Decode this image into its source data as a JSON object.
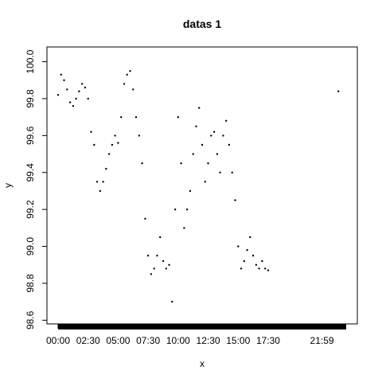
{
  "chart_data": {
    "type": "scatter",
    "title": "datas 1",
    "xlabel": "x",
    "ylabel": "y",
    "x_unit": "hours",
    "x_ticks": [
      {
        "value": 0.0,
        "label": "00:00"
      },
      {
        "value": 2.5,
        "label": "02:30"
      },
      {
        "value": 5.0,
        "label": "05:00"
      },
      {
        "value": 7.5,
        "label": "07:30"
      },
      {
        "value": 10.0,
        "label": "10:00"
      },
      {
        "value": 12.5,
        "label": "12:30"
      },
      {
        "value": 15.0,
        "label": "15:00"
      },
      {
        "value": 17.5,
        "label": "17:30"
      },
      {
        "value": 21.98,
        "label": "21:59"
      }
    ],
    "y_ticks": [
      {
        "value": 98.6,
        "label": "98.6"
      },
      {
        "value": 98.8,
        "label": "98.8"
      },
      {
        "value": 99.0,
        "label": "99.0"
      },
      {
        "value": 99.2,
        "label": "99.2"
      },
      {
        "value": 99.4,
        "label": "99.4"
      },
      {
        "value": 99.6,
        "label": "99.6"
      },
      {
        "value": 99.8,
        "label": "99.8"
      },
      {
        "value": 100.0,
        "label": "100.0"
      }
    ],
    "xlim": [
      0,
      24
    ],
    "ylim": [
      98.58,
      100.08
    ],
    "rug": {
      "from": 0.0,
      "to": 24.0,
      "note": "dense tick marks along the x-axis"
    },
    "series": [
      {
        "marker": "point",
        "color": "#000000",
        "x": [
          0.0,
          0.25,
          0.5,
          0.75,
          1.0,
          1.25,
          1.5,
          1.75,
          2.0,
          2.25,
          2.5,
          2.75,
          3.0,
          3.25,
          3.5,
          3.75,
          4.0,
          4.25,
          4.5,
          4.75,
          5.0,
          5.25,
          5.5,
          5.75,
          6.0,
          6.25,
          6.5,
          6.75,
          7.0,
          7.25,
          7.5,
          7.75,
          8.0,
          8.25,
          8.5,
          8.75,
          9.0,
          9.25,
          9.5,
          9.75,
          10.0,
          10.25,
          10.5,
          10.75,
          11.0,
          11.25,
          11.5,
          11.75,
          12.0,
          12.25,
          12.5,
          12.75,
          13.0,
          13.25,
          13.5,
          13.75,
          14.0,
          14.25,
          14.5,
          14.75,
          15.0,
          15.25,
          15.5,
          15.75,
          16.0,
          16.25,
          16.5,
          16.75,
          17.0,
          17.25,
          17.5,
          23.35
        ],
        "y": [
          99.82,
          99.93,
          99.9,
          99.85,
          99.78,
          99.76,
          99.8,
          99.84,
          99.88,
          99.86,
          99.8,
          99.62,
          99.55,
          99.35,
          99.3,
          99.35,
          99.42,
          99.5,
          99.55,
          99.6,
          99.56,
          99.7,
          99.88,
          99.93,
          99.95,
          99.85,
          99.7,
          99.6,
          99.45,
          99.15,
          98.95,
          98.85,
          98.88,
          98.95,
          99.05,
          98.92,
          98.88,
          98.9,
          98.7,
          99.2,
          99.7,
          99.45,
          99.1,
          99.2,
          99.3,
          99.5,
          99.65,
          99.75,
          99.55,
          99.35,
          99.45,
          99.6,
          99.62,
          99.5,
          99.4,
          99.6,
          99.68,
          99.55,
          99.4,
          99.25,
          99.0,
          98.88,
          98.92,
          98.98,
          99.05,
          98.95,
          98.9,
          98.88,
          98.92,
          98.88,
          98.87,
          99.84
        ]
      }
    ]
  }
}
